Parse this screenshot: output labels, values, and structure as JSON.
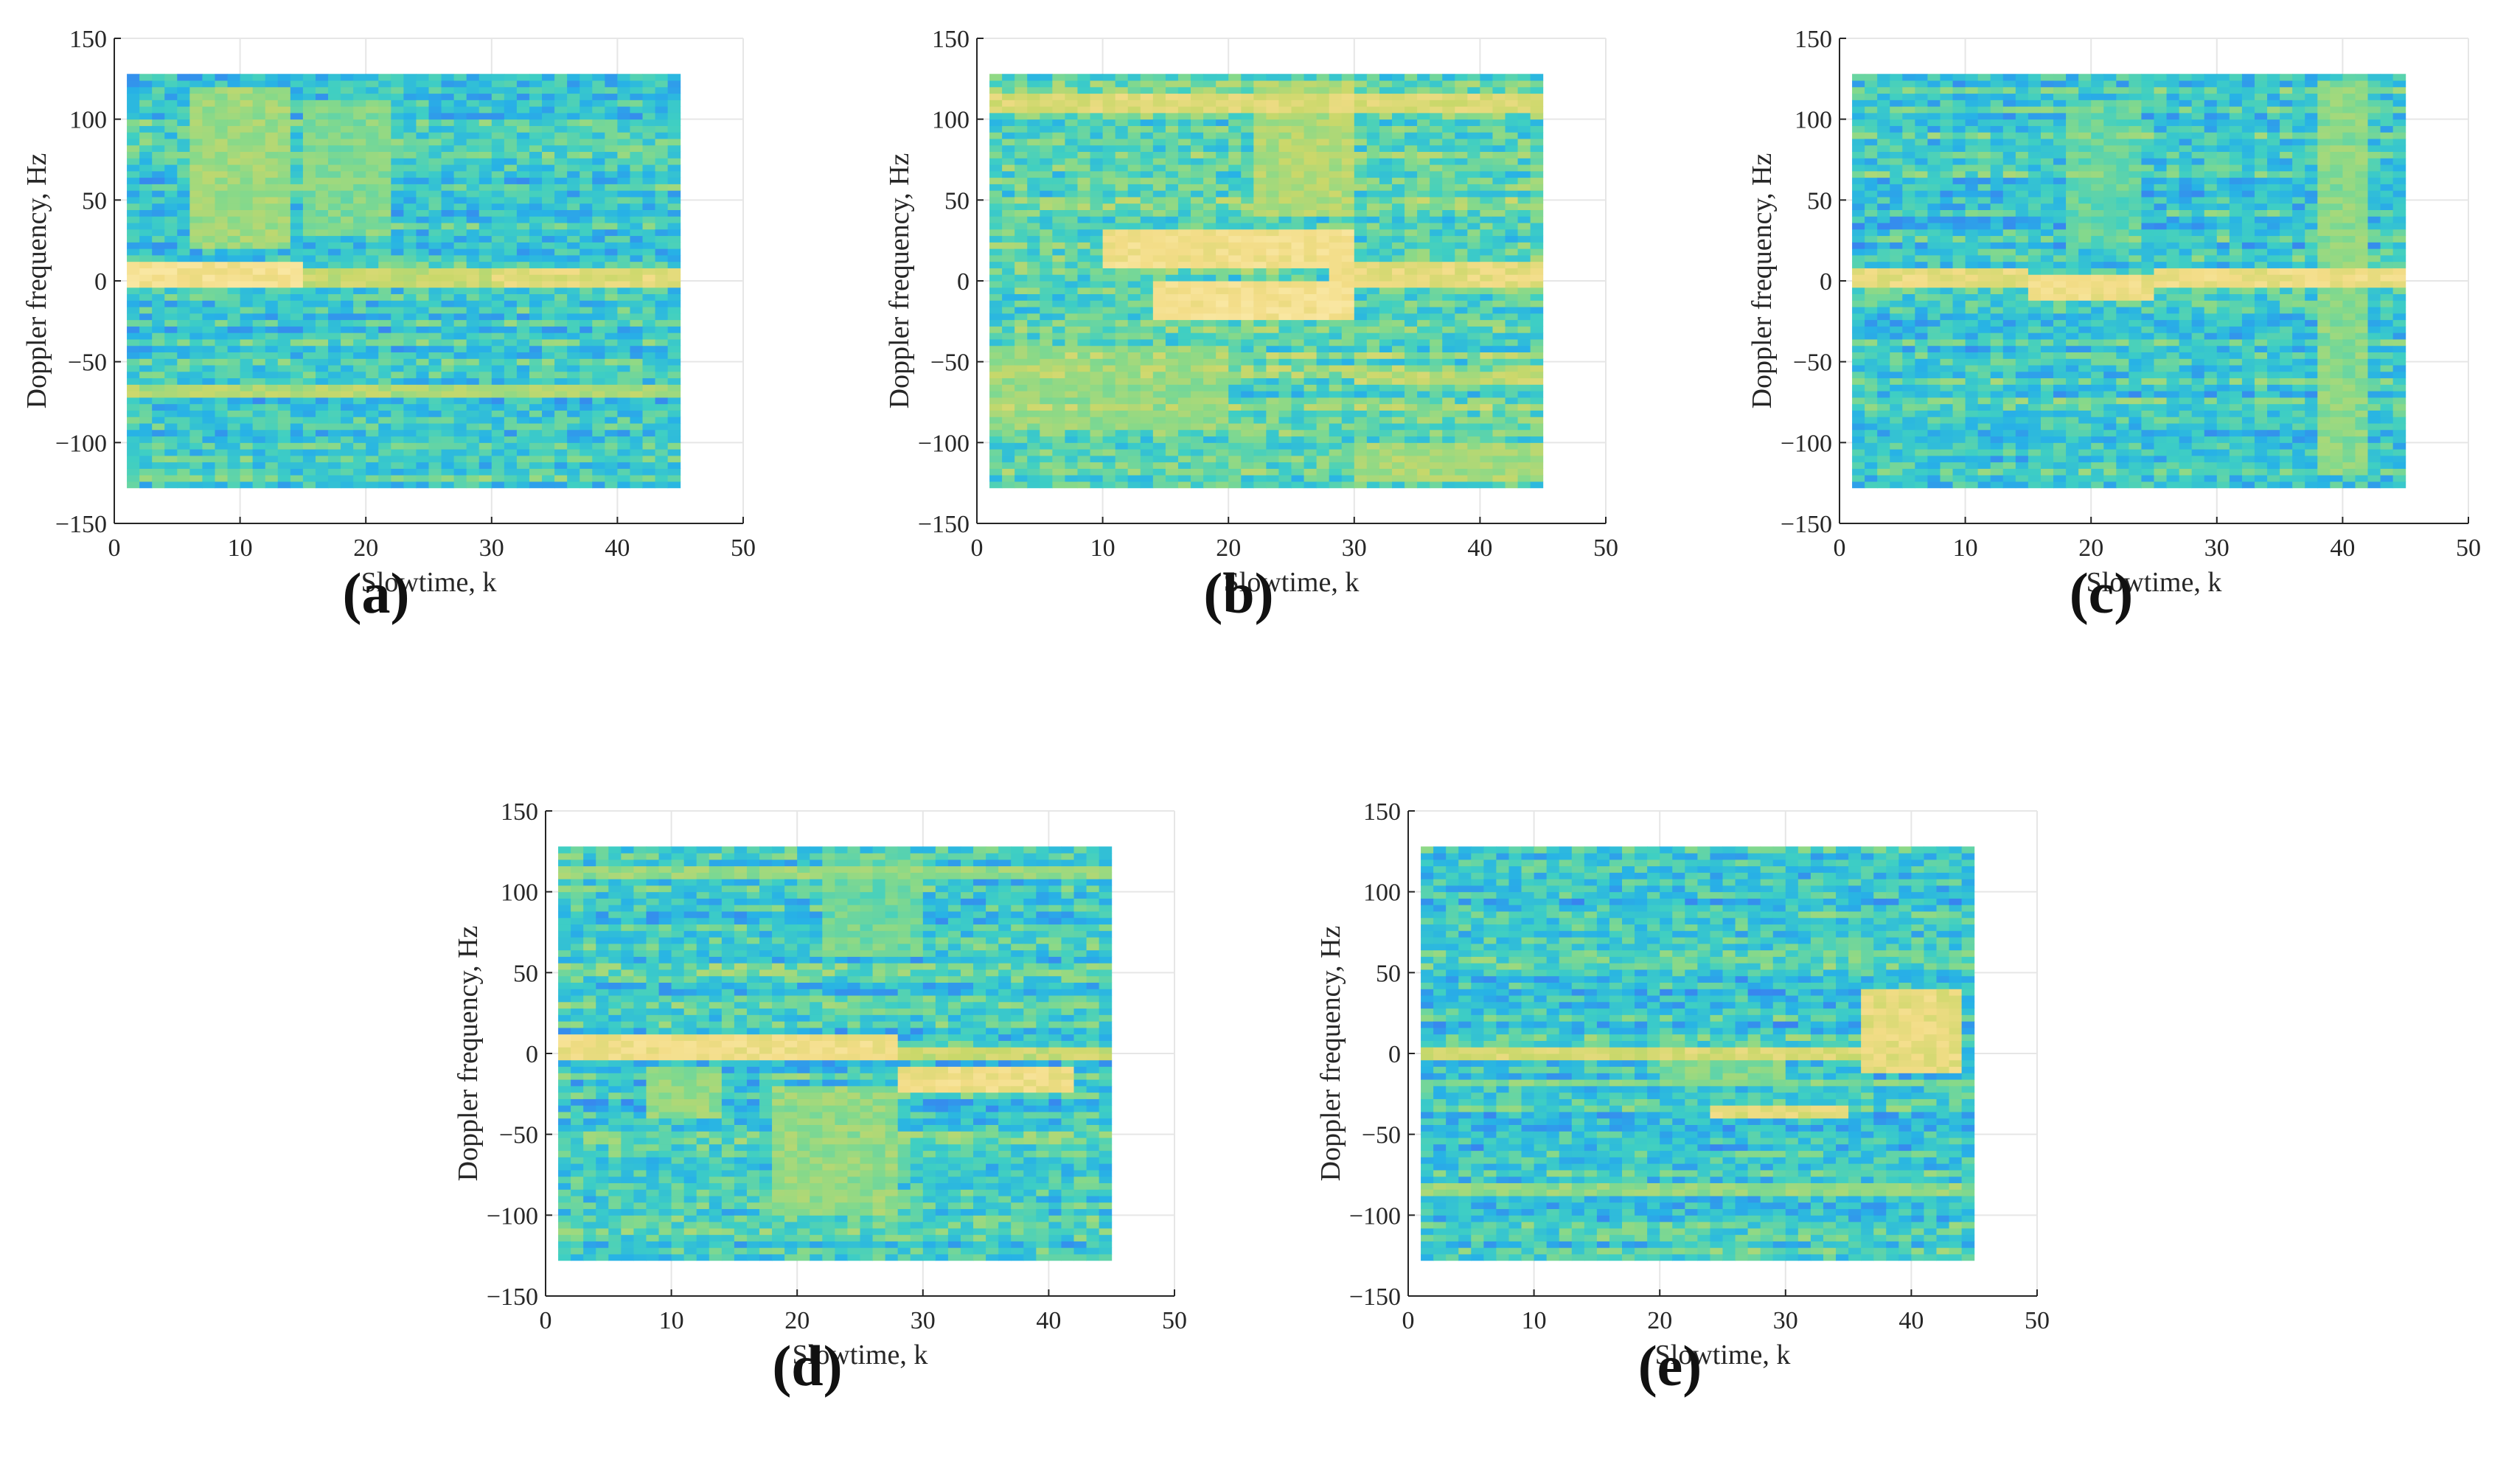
{
  "colormap": [
    "#3d4bd9",
    "#3a80f0",
    "#27b2e6",
    "#3fcfc3",
    "#86d98a",
    "#c9d86a",
    "#f2dc86",
    "#fbeaaa"
  ],
  "axis_color": "#262626",
  "grid_color": "#e6e6e6",
  "chart_data": [
    {
      "id": "a",
      "type": "heatmap",
      "panel_label": "(a)",
      "xlabel": "Slowtime, k",
      "ylabel": "Doppler frequency, Hz",
      "xlim": [
        0,
        50
      ],
      "ylim": [
        -150,
        150
      ],
      "xticks": [
        0,
        10,
        20,
        30,
        40,
        50
      ],
      "yticks": [
        -150,
        -100,
        -50,
        0,
        50,
        100,
        150
      ],
      "slowtime_range": [
        1,
        45
      ],
      "doppler_range": [
        -128,
        128
      ],
      "background_level": 0.42,
      "features": [
        {
          "k": [
            1,
            15
          ],
          "f": [
            -2,
            12
          ],
          "level": 0.9
        },
        {
          "k": [
            15,
            45
          ],
          "f": [
            -2,
            6
          ],
          "level": 0.72
        },
        {
          "k": [
            30,
            45
          ],
          "f": [
            -4,
            6
          ],
          "level": 0.8
        },
        {
          "k": [
            6,
            14
          ],
          "f": [
            20,
            120
          ],
          "level": 0.62
        },
        {
          "k": [
            15,
            22
          ],
          "f": [
            30,
            110
          ],
          "level": 0.56
        },
        {
          "k": [
            1,
            45
          ],
          "f": [
            -72,
            -66
          ],
          "level": 0.66
        },
        {
          "k": [
            20,
            30
          ],
          "f": [
            -100,
            -70
          ],
          "level": 0.3
        },
        {
          "k": [
            22,
            30
          ],
          "f": [
            55,
            70
          ],
          "level": 0.3
        }
      ]
    },
    {
      "id": "b",
      "type": "heatmap",
      "panel_label": "(b)",
      "xlabel": "Slowtime, k",
      "ylabel": "Doppler frequency, Hz",
      "xlim": [
        0,
        50
      ],
      "ylim": [
        -150,
        150
      ],
      "xticks": [
        0,
        10,
        20,
        30,
        40,
        50
      ],
      "yticks": [
        -150,
        -100,
        -50,
        0,
        50,
        100,
        150
      ],
      "slowtime_range": [
        1,
        45
      ],
      "doppler_range": [
        -128,
        128
      ],
      "background_level": 0.5,
      "features": [
        {
          "k": [
            10,
            30
          ],
          "f": [
            10,
            30
          ],
          "level": 0.88
        },
        {
          "k": [
            14,
            30
          ],
          "f": [
            -25,
            0
          ],
          "level": 0.9
        },
        {
          "k": [
            28,
            45
          ],
          "f": [
            -5,
            10
          ],
          "level": 0.82
        },
        {
          "k": [
            1,
            45
          ],
          "f": [
            105,
            115
          ],
          "level": 0.78
        },
        {
          "k": [
            22,
            30
          ],
          "f": [
            40,
            125
          ],
          "level": 0.66
        },
        {
          "k": [
            30,
            45
          ],
          "f": [
            -62,
            -56
          ],
          "level": 0.7
        },
        {
          "k": [
            1,
            20
          ],
          "f": [
            -90,
            -40
          ],
          "level": 0.6
        },
        {
          "k": [
            30,
            45
          ],
          "f": [
            -125,
            -100
          ],
          "level": 0.64
        }
      ]
    },
    {
      "id": "c",
      "type": "heatmap",
      "panel_label": "(c)",
      "xlabel": "Slowtime, k",
      "ylabel": "Doppler frequency, Hz",
      "xlim": [
        0,
        50
      ],
      "ylim": [
        -150,
        150
      ],
      "xticks": [
        0,
        10,
        20,
        30,
        40,
        50
      ],
      "yticks": [
        -150,
        -100,
        -50,
        0,
        50,
        100,
        150
      ],
      "slowtime_range": [
        1,
        45
      ],
      "doppler_range": [
        -128,
        128
      ],
      "background_level": 0.4,
      "features": [
        {
          "k": [
            1,
            15
          ],
          "f": [
            -4,
            6
          ],
          "level": 0.82
        },
        {
          "k": [
            15,
            25
          ],
          "f": [
            -12,
            2
          ],
          "level": 0.86
        },
        {
          "k": [
            25,
            45
          ],
          "f": [
            -4,
            8
          ],
          "level": 0.84
        },
        {
          "k": [
            38,
            42
          ],
          "f": [
            -120,
            125
          ],
          "level": 0.58
        },
        {
          "k": [
            18,
            24
          ],
          "f": [
            20,
            110
          ],
          "level": 0.5
        },
        {
          "k": [
            4,
            12
          ],
          "f": [
            -110,
            -60
          ],
          "level": 0.28
        }
      ]
    },
    {
      "id": "d",
      "type": "heatmap",
      "panel_label": "(d)",
      "xlabel": "Slowtime, k",
      "ylabel": "Doppler frequency, Hz",
      "xlim": [
        0,
        50
      ],
      "ylim": [
        -150,
        150
      ],
      "xticks": [
        0,
        10,
        20,
        30,
        40,
        50
      ],
      "yticks": [
        -150,
        -100,
        -50,
        0,
        50,
        100,
        150
      ],
      "slowtime_range": [
        1,
        45
      ],
      "doppler_range": [
        -128,
        128
      ],
      "background_level": 0.42,
      "features": [
        {
          "k": [
            1,
            28
          ],
          "f": [
            -4,
            10
          ],
          "level": 0.86
        },
        {
          "k": [
            28,
            42
          ],
          "f": [
            -25,
            -10
          ],
          "level": 0.86
        },
        {
          "k": [
            28,
            45
          ],
          "f": [
            -4,
            4
          ],
          "level": 0.72
        },
        {
          "k": [
            18,
            28
          ],
          "f": [
            -100,
            -20
          ],
          "level": 0.6
        },
        {
          "k": [
            8,
            14
          ],
          "f": [
            -40,
            -10
          ],
          "level": 0.6
        },
        {
          "k": [
            22,
            30
          ],
          "f": [
            60,
            125
          ],
          "level": 0.52
        },
        {
          "k": [
            1,
            45
          ],
          "f": [
            110,
            116
          ],
          "level": 0.6
        }
      ]
    },
    {
      "id": "e",
      "type": "heatmap",
      "panel_label": "(e)",
      "xlabel": "Slowtime, k",
      "ylabel": "Doppler frequency, Hz",
      "xlim": [
        0,
        50
      ],
      "ylim": [
        -150,
        150
      ],
      "xticks": [
        0,
        10,
        20,
        30,
        40,
        50
      ],
      "yticks": [
        -150,
        -100,
        -50,
        0,
        50,
        100,
        150
      ],
      "slowtime_range": [
        1,
        45
      ],
      "doppler_range": [
        -128,
        128
      ],
      "background_level": 0.4,
      "features": [
        {
          "k": [
            1,
            38
          ],
          "f": [
            -4,
            4
          ],
          "level": 0.76
        },
        {
          "k": [
            36,
            44
          ],
          "f": [
            -10,
            40
          ],
          "level": 0.82
        },
        {
          "k": [
            24,
            35
          ],
          "f": [
            -40,
            -32
          ],
          "level": 0.8
        },
        {
          "k": [
            20,
            30
          ],
          "f": [
            -20,
            5
          ],
          "level": 0.56
        },
        {
          "k": [
            1,
            45
          ],
          "f": [
            -88,
            -82
          ],
          "level": 0.6
        },
        {
          "k": [
            1,
            45
          ],
          "f": [
            -20,
            -16
          ],
          "level": 0.56
        }
      ]
    }
  ]
}
